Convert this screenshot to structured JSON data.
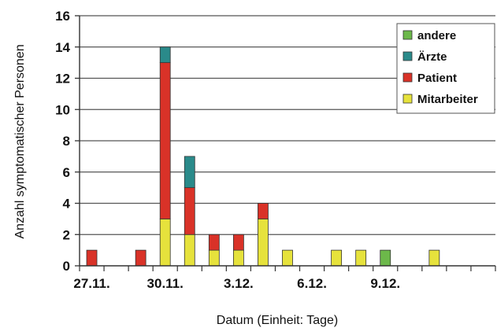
{
  "chart_data": {
    "type": "bar",
    "stacked": true,
    "xlabel": "Datum (Einheit: Tage)",
    "ylabel": "Anzahl symptomatischer Personen",
    "ylim": [
      0,
      16
    ],
    "yticks": [
      0,
      2,
      4,
      6,
      8,
      10,
      12,
      14,
      16
    ],
    "grid": "horizontal",
    "legend_position": "top-right",
    "x_tick_labels": [
      {
        "label": "27.11.",
        "day_index": 0
      },
      {
        "label": "30.11.",
        "day_index": 3
      },
      {
        "label": "3.12.",
        "day_index": 6
      },
      {
        "label": "6.12.",
        "day_index": 9
      },
      {
        "label": "9.12.",
        "day_index": 12
      }
    ],
    "categories": [
      "27.11.",
      "28.11.",
      "29.11.",
      "30.11.",
      "1.12.",
      "2.12.",
      "3.12.",
      "4.12.",
      "5.12.",
      "6.12.",
      "7.12.",
      "8.12.",
      "9.12.",
      "10.12.",
      "11.12.",
      "12.12.",
      "13.12."
    ],
    "series": [
      {
        "name": "Mitarbeiter",
        "color": "#e6e23c",
        "values": [
          0,
          0,
          0,
          3,
          2,
          1,
          1,
          3,
          1,
          0,
          1,
          1,
          0,
          0,
          1,
          0,
          0
        ]
      },
      {
        "name": "Patient",
        "color": "#d93228",
        "values": [
          1,
          0,
          1,
          10,
          3,
          1,
          1,
          1,
          0,
          0,
          0,
          0,
          0,
          0,
          0,
          0,
          0
        ]
      },
      {
        "name": "Ärzte",
        "color": "#2a8a8a",
        "values": [
          0,
          0,
          0,
          1,
          2,
          0,
          0,
          0,
          0,
          0,
          0,
          0,
          0,
          0,
          0,
          0,
          0
        ]
      },
      {
        "name": "andere",
        "color": "#6cb84a",
        "values": [
          0,
          0,
          0,
          0,
          0,
          0,
          0,
          0,
          0,
          0,
          0,
          0,
          1,
          0,
          0,
          0,
          0
        ]
      }
    ],
    "legend_order": [
      "andere",
      "Ärzte",
      "Patient",
      "Mitarbeiter"
    ]
  }
}
